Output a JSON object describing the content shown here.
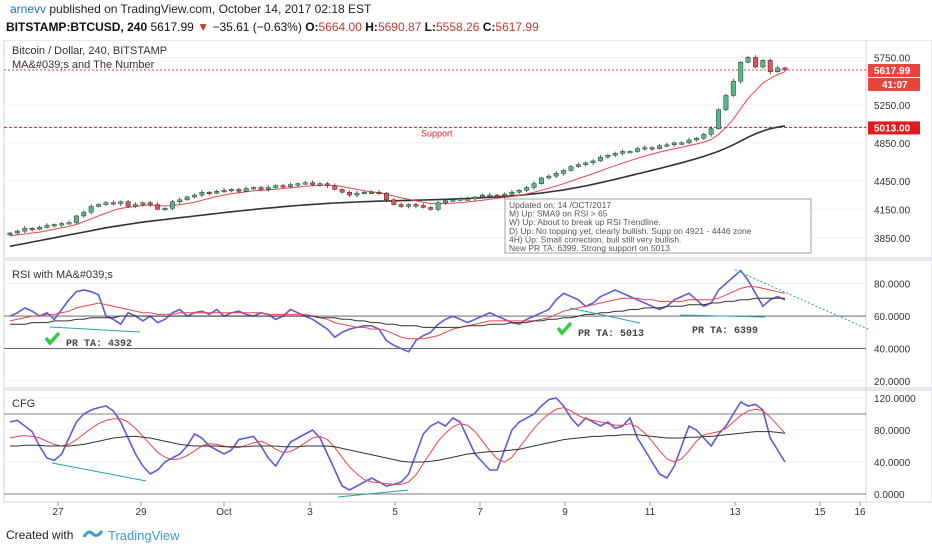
{
  "header": {
    "user": "arnevv",
    "published": "published on TradingView.com, October 14, 2017 02:18 EST",
    "symbol": "BITSTAMP:BTCUSD, 240",
    "last": "5617.99",
    "change": "−35.61 (−0.63%)",
    "open_label": "O:",
    "open": "5664.00",
    "high_label": "H:",
    "high": "5690.87",
    "low_label": "L:",
    "low": "5558.26",
    "close_label": "C:",
    "close": "5617.99"
  },
  "main_pane": {
    "title": "Bitcoin / Dollar, 240, BITSTAMP",
    "indicator": "MA&#039;s and The Number",
    "support_label": "Support",
    "price_tag": "5617.99",
    "countdown_tag": "41:07",
    "support_tag": "5013.00",
    "note_lines": [
      "Updated on: 14 /OCT/2017",
      "M) Up: SMA9 on RSI > 65",
      "W) Up: About to break up RSI Trendline.",
      "D) Up: No topping yet, clearly bullish. Supp on 4921 - 4446 zone",
      "4H) Up: Small correction, bull still very bullish.",
      "New PR TA: 6399. Strong support on 5013"
    ]
  },
  "rsi_pane": {
    "title": "RSI with MA&#039;s",
    "labels": [
      "PR TA: 4392",
      "PR TA: 5013",
      "PR TA: 6399"
    ]
  },
  "cfg_pane": {
    "title": "CFG"
  },
  "time_axis": [
    "27",
    "29",
    "Oct",
    "3",
    "5",
    "7",
    "9",
    "11",
    "13",
    "15",
    "16"
  ],
  "footer": {
    "created": "Created with",
    "brand": "TradingView"
  },
  "colors": {
    "up": "#53b987",
    "down": "#eb4d5c",
    "ma_fast": "#e44",
    "ma_slow": "#333333",
    "rsi": "#5b5bdc",
    "support": "#e31a1c",
    "trend": "#26a69a"
  },
  "chart_data": [
    {
      "type": "candlestick",
      "title": "Bitcoin / Dollar, 240, BITSTAMP",
      "x_ticks": [
        "27",
        "29",
        "Oct",
        "3",
        "5",
        "7",
        "9",
        "11",
        "13",
        "15",
        "16"
      ],
      "y_ticks": [
        3850,
        4150,
        4450,
        4850,
        5250,
        5750
      ],
      "ylim": [
        3700,
        5850
      ],
      "support_level": 5013,
      "last_price": 5617.99,
      "close": [
        3900,
        3920,
        3950,
        3940,
        3960,
        3980,
        3990,
        4000,
        4010,
        4080,
        4120,
        4180,
        4200,
        4220,
        4210,
        4230,
        4180,
        4200,
        4220,
        4200,
        4150,
        4160,
        4230,
        4250,
        4280,
        4300,
        4330,
        4320,
        4340,
        4350,
        4360,
        4340,
        4370,
        4380,
        4360,
        4380,
        4400,
        4390,
        4410,
        4420,
        4430,
        4410,
        4420,
        4400,
        4360,
        4330,
        4300,
        4320,
        4330,
        4330,
        4320,
        4250,
        4200,
        4180,
        4200,
        4190,
        4170,
        4150,
        4220,
        4240,
        4250,
        4260,
        4260,
        4280,
        4300,
        4300,
        4290,
        4310,
        4330,
        4350,
        4380,
        4420,
        4480,
        4500,
        4530,
        4560,
        4600,
        4620,
        4640,
        4660,
        4700,
        4720,
        4740,
        4760,
        4760,
        4790,
        4800,
        4790,
        4820,
        4830,
        4850,
        4850,
        4880,
        4900,
        4940,
        5000,
        5200,
        5350,
        5500,
        5700,
        5750,
        5650,
        5720,
        5600,
        5640,
        5618
      ],
      "ma_fast": [
        3870,
        3880,
        3890,
        3900,
        3910,
        3925,
        3940,
        3955,
        3970,
        3990,
        4020,
        4050,
        4080,
        4110,
        4140,
        4160,
        4170,
        4180,
        4190,
        4195,
        4190,
        4185,
        4190,
        4200,
        4210,
        4225,
        4245,
        4265,
        4285,
        4300,
        4315,
        4325,
        4335,
        4345,
        4350,
        4355,
        4362,
        4370,
        4377,
        4385,
        4393,
        4398,
        4402,
        4405,
        4400,
        4390,
        4375,
        4360,
        4345,
        4335,
        4325,
        4310,
        4290,
        4270,
        4255,
        4240,
        4225,
        4210,
        4210,
        4212,
        4215,
        4220,
        4228,
        4236,
        4245,
        4255,
        4265,
        4275,
        4285,
        4297,
        4312,
        4330,
        4350,
        4372,
        4396,
        4420,
        4447,
        4474,
        4500,
        4526,
        4555,
        4583,
        4610,
        4637,
        4662,
        4688,
        4712,
        4733,
        4753,
        4771,
        4788,
        4805,
        4821,
        4838,
        4858,
        4885,
        4940,
        5010,
        5100,
        5210,
        5320,
        5400,
        5480,
        5530,
        5570,
        5600
      ],
      "ma_slow": [
        3760,
        3775,
        3790,
        3805,
        3820,
        3835,
        3850,
        3865,
        3880,
        3895,
        3910,
        3925,
        3940,
        3955,
        3968,
        3980,
        3992,
        4004,
        4015,
        4025,
        4034,
        4043,
        4052,
        4061,
        4070,
        4079,
        4088,
        4097,
        4106,
        4115,
        4124,
        4132,
        4140,
        4148,
        4156,
        4163,
        4170,
        4177,
        4184,
        4190,
        4196,
        4202,
        4207,
        4212,
        4216,
        4220,
        4224,
        4227,
        4230,
        4233,
        4236,
        4238,
        4240,
        4242,
        4244,
        4246,
        4248,
        4250,
        4252,
        4255,
        4258,
        4261,
        4264,
        4268,
        4272,
        4276,
        4281,
        4286,
        4292,
        4298,
        4305,
        4313,
        4322,
        4332,
        4343,
        4355,
        4368,
        4382,
        4397,
        4413,
        4430,
        4448,
        4466,
        4485,
        4504,
        4523,
        4542,
        4561,
        4580,
        4600,
        4620,
        4640,
        4662,
        4684,
        4708,
        4734,
        4762,
        4794,
        4830,
        4870,
        4910,
        4945,
        4975,
        5000,
        5015,
        5030
      ]
    },
    {
      "type": "line",
      "title": "RSI with MA&#039;s",
      "y_ticks": [
        20,
        40,
        60,
        80
      ],
      "ylim": [
        17,
        92
      ],
      "series": [
        {
          "values": [
            60,
            62,
            65,
            63,
            60,
            62,
            58,
            64,
            70,
            75,
            76,
            75,
            73,
            60,
            58,
            55,
            62,
            60,
            57,
            60,
            56,
            58,
            62,
            64,
            60,
            62,
            63,
            61,
            64,
            60,
            62,
            63,
            61,
            60,
            62,
            61,
            58,
            60,
            64,
            62,
            60,
            58,
            55,
            52,
            47,
            50,
            52,
            53,
            54,
            54,
            52,
            45,
            42,
            40,
            38,
            45,
            48,
            50,
            55,
            58,
            60,
            58,
            56,
            58,
            60,
            62,
            60,
            58,
            56,
            55,
            58,
            60,
            62,
            64,
            70,
            74,
            72,
            70,
            66,
            68,
            72,
            74,
            76,
            74,
            72,
            70,
            68,
            66,
            64,
            66,
            70,
            72,
            74,
            70,
            66,
            68,
            76,
            80,
            84,
            88,
            82,
            74,
            66,
            70,
            72,
            70
          ]
        },
        {
          "values": [
            57,
            58,
            59,
            60,
            60,
            61,
            61,
            62,
            63,
            65,
            66,
            67,
            68,
            67,
            66,
            65,
            64,
            63,
            62,
            62,
            61,
            61,
            61,
            62,
            62,
            62,
            62,
            62,
            62,
            62,
            62,
            62,
            62,
            62,
            62,
            61,
            61,
            61,
            61,
            61,
            61,
            60,
            59,
            58,
            56,
            55,
            54,
            53,
            53,
            52,
            52,
            51,
            49,
            47,
            46,
            46,
            46,
            47,
            48,
            50,
            52,
            53,
            54,
            55,
            56,
            57,
            57,
            57,
            57,
            57,
            57,
            57,
            58,
            59,
            61,
            63,
            64,
            65,
            66,
            67,
            68,
            69,
            70,
            71,
            71,
            71,
            70,
            70,
            69,
            69,
            69,
            69,
            70,
            70,
            70,
            70,
            71,
            73,
            75,
            77,
            78,
            78,
            77,
            76,
            75,
            74
          ]
        },
        {
          "values": [
            55,
            55,
            55,
            56,
            56,
            56,
            57,
            57,
            57,
            58,
            58,
            59,
            59,
            59,
            59,
            60,
            60,
            60,
            60,
            60,
            60,
            60,
            60,
            60,
            60,
            60,
            60,
            60,
            60,
            60,
            60,
            60,
            60,
            60,
            60,
            60,
            60,
            60,
            60,
            60,
            60,
            60,
            59,
            59,
            59,
            58,
            58,
            57,
            57,
            56,
            56,
            55,
            55,
            54,
            54,
            54,
            53,
            53,
            53,
            53,
            53,
            53,
            54,
            54,
            54,
            55,
            55,
            55,
            56,
            56,
            56,
            57,
            57,
            58,
            58,
            59,
            59,
            60,
            61,
            61,
            62,
            62,
            63,
            63,
            64,
            64,
            65,
            65,
            65,
            66,
            66,
            66,
            67,
            67,
            67,
            68,
            68,
            69,
            69,
            70,
            70,
            71,
            71,
            71,
            71,
            71
          ]
        }
      ]
    },
    {
      "type": "line",
      "title": "CFG",
      "y_ticks": [
        0,
        40,
        80,
        120
      ],
      "ylim": [
        -5,
        125
      ],
      "series": [
        {
          "values": [
            90,
            92,
            85,
            78,
            60,
            45,
            42,
            50,
            70,
            90,
            100,
            105,
            108,
            110,
            104,
            90,
            70,
            50,
            35,
            25,
            30,
            40,
            45,
            50,
            60,
            75,
            70,
            60,
            55,
            50,
            55,
            68,
            70,
            72,
            60,
            45,
            35,
            50,
            65,
            70,
            75,
            80,
            70,
            50,
            30,
            10,
            5,
            10,
            15,
            20,
            15,
            10,
            12,
            15,
            25,
            50,
            75,
            85,
            90,
            85,
            95,
            90,
            70,
            50,
            40,
            30,
            30,
            55,
            80,
            90,
            95,
            100,
            110,
            118,
            120,
            110,
            95,
            85,
            95,
            90,
            85,
            90,
            82,
            85,
            95,
            70,
            55,
            40,
            25,
            20,
            35,
            60,
            85,
            80,
            70,
            60,
            75,
            85,
            100,
            115,
            110,
            112,
            105,
            70,
            55,
            40
          ]
        },
        {
          "values": [
            70,
            72,
            73,
            72,
            70,
            66,
            62,
            60,
            62,
            68,
            75,
            82,
            88,
            92,
            94,
            94,
            90,
            82,
            72,
            62,
            52,
            46,
            43,
            44,
            48,
            54,
            60,
            63,
            62,
            60,
            58,
            58,
            61,
            64,
            66,
            62,
            56,
            52,
            53,
            58,
            64,
            70,
            72,
            68,
            58,
            46,
            34,
            25,
            18,
            15,
            14,
            13,
            12,
            12,
            15,
            24,
            38,
            52,
            66,
            76,
            84,
            88,
            86,
            78,
            66,
            54,
            44,
            40,
            46,
            58,
            70,
            82,
            92,
            100,
            106,
            108,
            104,
            98,
            94,
            92,
            90,
            88,
            86,
            86,
            88,
            84,
            76,
            66,
            54,
            44,
            40,
            44,
            54,
            66,
            74,
            76,
            78,
            82,
            90,
            98,
            104,
            106,
            104,
            96,
            86,
            76
          ]
        },
        {
          "values": [
            60,
            60,
            61,
            61,
            61,
            60,
            60,
            60,
            60,
            61,
            62,
            64,
            66,
            68,
            70,
            71,
            72,
            72,
            71,
            70,
            68,
            66,
            64,
            62,
            61,
            60,
            60,
            60,
            60,
            59,
            59,
            59,
            59,
            60,
            60,
            60,
            60,
            59,
            59,
            59,
            60,
            60,
            60,
            60,
            59,
            57,
            55,
            53,
            51,
            49,
            47,
            45,
            43,
            41,
            40,
            40,
            40,
            41,
            42,
            44,
            46,
            48,
            50,
            51,
            52,
            53,
            53,
            54,
            55,
            56,
            58,
            60,
            62,
            64,
            66,
            68,
            69,
            70,
            71,
            72,
            72,
            73,
            73,
            74,
            74,
            74,
            73,
            72,
            71,
            70,
            70,
            70,
            71,
            71,
            72,
            72,
            73,
            74,
            75,
            76,
            77,
            78,
            78,
            78,
            77,
            76
          ]
        }
      ]
    }
  ]
}
